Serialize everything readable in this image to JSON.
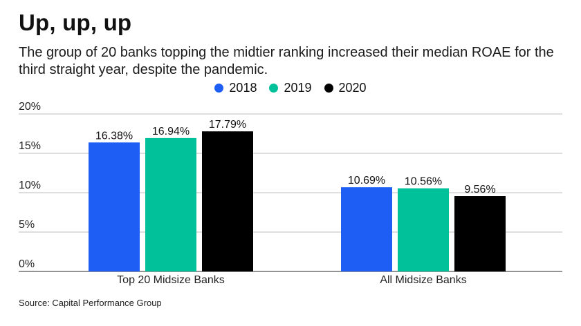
{
  "header": {
    "title": "Up, up, up",
    "subtitle": "The group of 20 banks topping the midtier ranking increased their median ROAE for the third straight year, despite the pandemic."
  },
  "legend": [
    {
      "label": "2018",
      "color": "#1f5ef5"
    },
    {
      "label": "2019",
      "color": "#00c19a"
    },
    {
      "label": "2020",
      "color": "#000000"
    }
  ],
  "footer": {
    "source": "Source: Capital Performance Group"
  },
  "chart_data": {
    "type": "bar",
    "title": "Up, up, up",
    "xlabel": "",
    "ylabel": "",
    "categories": [
      "Top 20 Midsize Banks",
      "All Midsize Banks"
    ],
    "series": [
      {
        "name": "2018",
        "color": "#1f5ef5",
        "values": [
          16.38,
          10.69
        ],
        "labels": [
          "16.38%",
          "10.69%"
        ]
      },
      {
        "name": "2019",
        "color": "#00c19a",
        "values": [
          16.94,
          10.56
        ],
        "labels": [
          "16.94%",
          "10.56%"
        ]
      },
      {
        "name": "2020",
        "color": "#000000",
        "values": [
          17.79,
          9.56
        ],
        "labels": [
          "17.79%",
          "9.56%"
        ]
      }
    ],
    "ylim": [
      0,
      20
    ],
    "yticks": [
      0,
      5,
      10,
      15,
      20
    ],
    "ytick_labels": [
      "0%",
      "5%",
      "10%",
      "15%",
      "20%"
    ],
    "grid": true,
    "legend_position": "top-center"
  }
}
